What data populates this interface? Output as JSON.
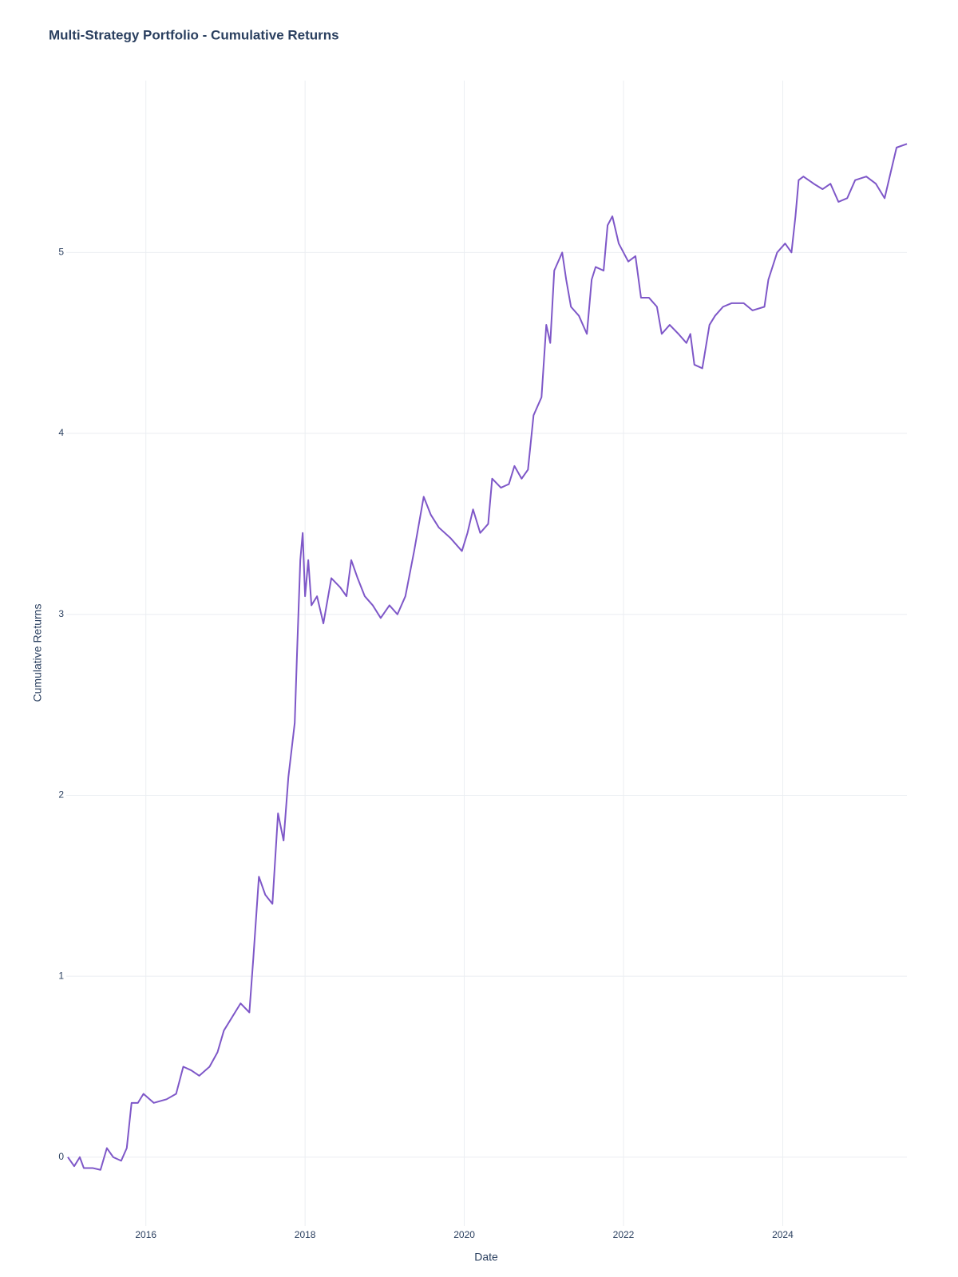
{
  "chart_data": {
    "type": "line",
    "title": "Multi-Strategy Portfolio - Cumulative Returns",
    "x_label": "Date",
    "y_label": "Cumulative Returns",
    "x": [
      2015.02,
      2015.1,
      2015.17,
      2015.22,
      2015.33,
      2015.43,
      2015.51,
      2015.59,
      2015.69,
      2015.76,
      2015.82,
      2015.9,
      2015.97,
      2016.1,
      2016.26,
      2016.38,
      2016.47,
      2016.57,
      2016.67,
      2016.8,
      2016.9,
      2016.98,
      2017.19,
      2017.3,
      2017.35,
      2017.42,
      2017.5,
      2017.59,
      2017.66,
      2017.73,
      2017.79,
      2017.87,
      2017.9,
      2017.94,
      2017.97,
      2018.0,
      2018.04,
      2018.08,
      2018.15,
      2018.23,
      2018.33,
      2018.44,
      2018.52,
      2018.58,
      2018.66,
      2018.75,
      2018.85,
      2018.95,
      2019.06,
      2019.16,
      2019.26,
      2019.37,
      2019.49,
      2019.58,
      2019.68,
      2019.83,
      2019.97,
      2020.04,
      2020.11,
      2020.2,
      2020.3,
      2020.35,
      2020.46,
      2020.56,
      2020.63,
      2020.72,
      2020.8,
      2020.87,
      2020.97,
      2021.03,
      2021.08,
      2021.13,
      2021.23,
      2021.28,
      2021.34,
      2021.44,
      2021.54,
      2021.6,
      2021.65,
      2021.75,
      2021.8,
      2021.86,
      2021.94,
      2022.06,
      2022.15,
      2022.22,
      2022.32,
      2022.42,
      2022.48,
      2022.58,
      2022.69,
      2022.79,
      2022.84,
      2022.89,
      2022.99,
      2023.08,
      2023.15,
      2023.25,
      2023.36,
      2023.51,
      2023.62,
      2023.77,
      2023.82,
      2023.93,
      2024.03,
      2024.11,
      2024.16,
      2024.2,
      2024.26,
      2024.39,
      2024.5,
      2024.6,
      2024.7,
      2024.81,
      2024.91,
      2025.05,
      2025.17,
      2025.28,
      2025.36,
      2025.43,
      2025.56
    ],
    "values": [
      0.0,
      -0.05,
      0.0,
      -0.06,
      -0.06,
      -0.07,
      0.05,
      0.0,
      -0.02,
      0.05,
      0.3,
      0.3,
      0.35,
      0.3,
      0.32,
      0.35,
      0.5,
      0.48,
      0.45,
      0.5,
      0.58,
      0.7,
      0.85,
      0.8,
      1.1,
      1.55,
      1.45,
      1.4,
      1.9,
      1.75,
      2.1,
      2.4,
      2.8,
      3.3,
      3.45,
      3.1,
      3.3,
      3.05,
      3.1,
      2.95,
      3.2,
      3.15,
      3.1,
      3.3,
      3.2,
      3.1,
      3.05,
      2.98,
      3.05,
      3.0,
      3.1,
      3.35,
      3.65,
      3.55,
      3.48,
      3.42,
      3.35,
      3.45,
      3.58,
      3.45,
      3.5,
      3.75,
      3.7,
      3.72,
      3.82,
      3.75,
      3.8,
      4.1,
      4.2,
      4.6,
      4.5,
      4.9,
      5.0,
      4.85,
      4.7,
      4.65,
      4.55,
      4.85,
      4.92,
      4.9,
      5.15,
      5.2,
      5.05,
      4.95,
      4.98,
      4.75,
      4.75,
      4.7,
      4.55,
      4.6,
      4.55,
      4.5,
      4.55,
      4.38,
      4.36,
      4.6,
      4.65,
      4.7,
      4.72,
      4.72,
      4.68,
      4.7,
      4.85,
      5.0,
      5.05,
      5.0,
      5.2,
      5.4,
      5.42,
      5.38,
      5.35,
      5.38,
      5.28,
      5.3,
      5.4,
      5.42,
      5.38,
      5.3,
      5.45,
      5.58,
      5.6
    ],
    "color": "#7e57c8",
    "xlim": [
      2015.0,
      2025.56
    ],
    "xticks": [
      2016,
      2018,
      2020,
      2022,
      2024
    ],
    "ylim": [
      -0.38,
      5.95
    ],
    "yticks": [
      0,
      1,
      2,
      3,
      4,
      5
    ],
    "grid": true
  }
}
